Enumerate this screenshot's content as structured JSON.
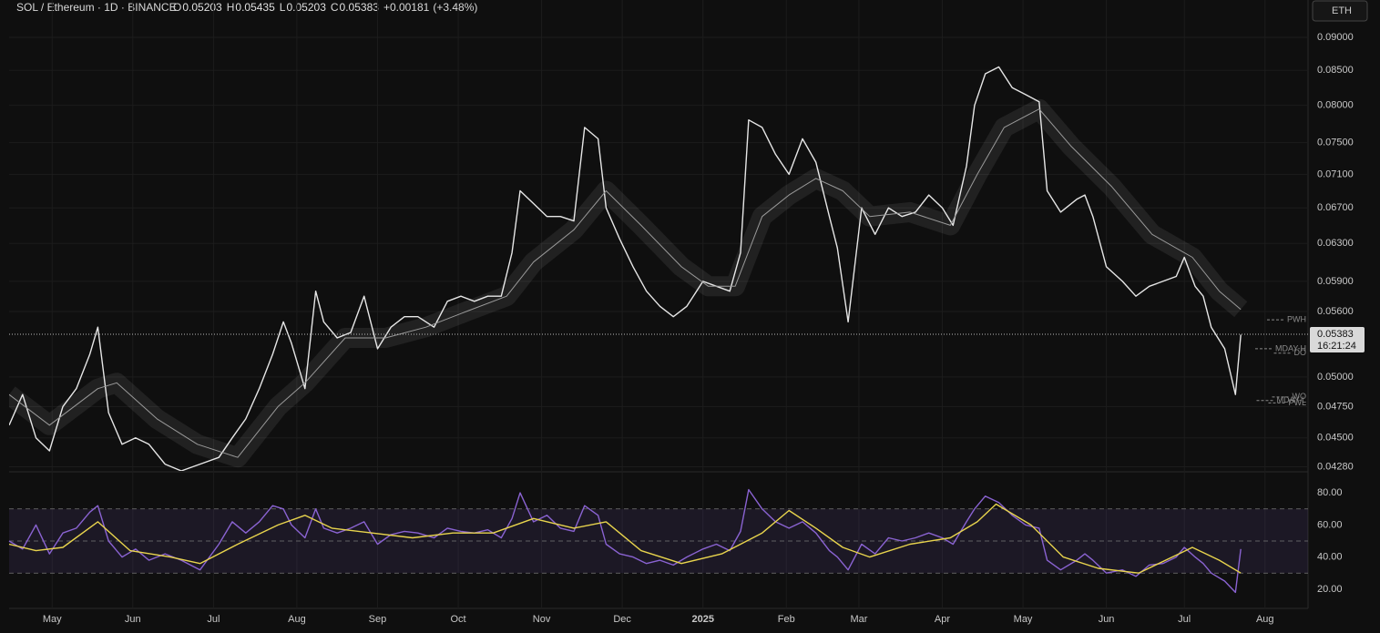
{
  "header": {
    "symbol": "SOL / Ethereum · 1D · BINANCE",
    "ohlc": [
      {
        "label": "O",
        "value": 0.05203
      },
      {
        "label": "H",
        "value": 0.05435
      },
      {
        "label": "L",
        "value": 0.05203
      },
      {
        "label": "C",
        "value": 0.05383
      }
    ],
    "change": {
      "value": 0.00181,
      "label": "+0.00181"
    },
    "change_pct": {
      "value": 3.48,
      "label": "(+3.48%)"
    },
    "currency_button": "ETH"
  },
  "chart_data": [
    {
      "type": "line",
      "log_scale": true,
      "grid": true,
      "xlim": [
        0,
        483
      ],
      "xticks": [
        {
          "value": 16,
          "label": "May"
        },
        {
          "value": 46,
          "label": "Jun"
        },
        {
          "value": 76,
          "label": "Jul"
        },
        {
          "value": 107,
          "label": "Aug"
        },
        {
          "value": 137,
          "label": "Sep"
        },
        {
          "value": 167,
          "label": "Oct"
        },
        {
          "value": 198,
          "label": "Nov"
        },
        {
          "value": 228,
          "label": "Dec"
        },
        {
          "value": 258,
          "label": "2025"
        },
        {
          "value": 289,
          "label": "Feb"
        },
        {
          "value": 316,
          "label": "Mar"
        },
        {
          "value": 347,
          "label": "Apr"
        },
        {
          "value": 377,
          "label": "May"
        },
        {
          "value": 408,
          "label": "Jun"
        },
        {
          "value": 437,
          "label": "Jul"
        },
        {
          "value": 467,
          "label": "Aug"
        }
      ],
      "ylim": [
        0.0425,
        0.096
      ],
      "yticks": [
        {
          "value": 0.09,
          "label": "0.09000"
        },
        {
          "value": 0.085,
          "label": "0.08500"
        },
        {
          "value": 0.08,
          "label": "0.08000"
        },
        {
          "value": 0.075,
          "label": "0.07500"
        },
        {
          "value": 0.071,
          "label": "0.07100"
        },
        {
          "value": 0.067,
          "label": "0.06700"
        },
        {
          "value": 0.063,
          "label": "0.06300"
        },
        {
          "value": 0.059,
          "label": "0.05900"
        },
        {
          "value": 0.056,
          "label": "0.05600"
        },
        {
          "value": 0.05,
          "label": "0.05000"
        },
        {
          "value": 0.0475,
          "label": "0.04750"
        },
        {
          "value": 0.045,
          "label": "0.04500"
        },
        {
          "value": 0.0428,
          "label": "0.04280"
        }
      ],
      "last_price": {
        "value": 0.05383,
        "label": "0.05383",
        "countdown": "16:21:24"
      },
      "levels": [
        {
          "label": "PWH",
          "value": 0.0552
        },
        {
          "label": "MDAY-H",
          "value": 0.0525
        },
        {
          "label": "DO",
          "value": 0.0521
        },
        {
          "label": "WO",
          "value": 0.0483
        },
        {
          "label": "MDAY-L",
          "value": 0.048
        },
        {
          "label": "PWL",
          "value": 0.0478
        }
      ],
      "series": [
        {
          "color": "#e6e6e6",
          "band": false,
          "x": [
            0,
            5,
            10,
            15,
            20,
            25,
            30,
            33,
            37,
            42,
            47,
            52,
            58,
            64,
            71,
            78,
            83,
            88,
            93,
            98,
            102,
            105,
            110,
            114,
            117,
            122,
            127,
            132,
            137,
            142,
            147,
            152,
            158,
            163,
            168,
            173,
            178,
            183,
            187,
            190,
            195,
            200,
            205,
            210,
            214,
            219,
            222,
            227,
            232,
            237,
            242,
            247,
            252,
            258,
            263,
            268,
            272,
            275,
            280,
            285,
            290,
            295,
            300,
            305,
            308,
            312,
            317,
            322,
            327,
            332,
            337,
            342,
            347,
            351,
            356,
            359,
            363,
            368,
            373,
            378,
            383,
            386,
            391,
            397,
            400,
            403,
            408,
            414,
            419,
            424,
            429,
            434,
            437,
            441,
            444,
            447,
            452,
            456,
            458
          ],
          "values": [
            0.046,
            0.0485,
            0.045,
            0.044,
            0.0475,
            0.049,
            0.052,
            0.0545,
            0.047,
            0.0445,
            0.045,
            0.0445,
            0.043,
            0.0425,
            0.043,
            0.0435,
            0.045,
            0.0465,
            0.049,
            0.052,
            0.055,
            0.053,
            0.049,
            0.058,
            0.055,
            0.0535,
            0.054,
            0.0575,
            0.0525,
            0.0545,
            0.0555,
            0.0555,
            0.0545,
            0.057,
            0.0575,
            0.057,
            0.0575,
            0.0575,
            0.062,
            0.069,
            0.0675,
            0.066,
            0.066,
            0.0655,
            0.077,
            0.0755,
            0.067,
            0.0635,
            0.0605,
            0.058,
            0.0565,
            0.0555,
            0.0565,
            0.059,
            0.0585,
            0.058,
            0.062,
            0.078,
            0.077,
            0.0735,
            0.071,
            0.0755,
            0.0725,
            0.066,
            0.0625,
            0.055,
            0.067,
            0.064,
            0.067,
            0.066,
            0.0665,
            0.0685,
            0.067,
            0.065,
            0.072,
            0.08,
            0.0845,
            0.0855,
            0.0825,
            0.0815,
            0.0805,
            0.069,
            0.0665,
            0.068,
            0.0685,
            0.066,
            0.0605,
            0.059,
            0.0575,
            0.0585,
            0.059,
            0.0595,
            0.0615,
            0.0585,
            0.0575,
            0.0545,
            0.0525,
            0.0485,
            0.0538
          ]
        },
        {
          "color": "#9a9a9a",
          "band": true,
          "x": [
            0,
            15,
            33,
            40,
            55,
            70,
            85,
            100,
            110,
            125,
            140,
            155,
            170,
            185,
            195,
            210,
            222,
            235,
            250,
            260,
            270,
            280,
            290,
            300,
            310,
            320,
            335,
            350,
            360,
            370,
            383,
            395,
            410,
            425,
            440,
            450,
            458
          ],
          "values": [
            0.0485,
            0.046,
            0.049,
            0.0495,
            0.0465,
            0.0445,
            0.0435,
            0.0475,
            0.0495,
            0.0535,
            0.0535,
            0.0545,
            0.056,
            0.0575,
            0.061,
            0.0645,
            0.069,
            0.065,
            0.0605,
            0.0585,
            0.0585,
            0.066,
            0.0685,
            0.0705,
            0.069,
            0.066,
            0.0665,
            0.065,
            0.071,
            0.077,
            0.0795,
            0.0745,
            0.0695,
            0.064,
            0.0615,
            0.058,
            0.0562
          ]
        }
      ]
    },
    {
      "type": "line",
      "ylim": [
        8,
        92
      ],
      "yticks": [
        {
          "value": 80,
          "label": "80.00"
        },
        {
          "value": 60,
          "label": "60.00"
        },
        {
          "value": 40,
          "label": "40.00"
        },
        {
          "value": 20,
          "label": "20.00"
        }
      ],
      "levels": [
        70,
        50,
        30
      ],
      "series": [
        {
          "color": "#8a63d2",
          "x": [
            0,
            5,
            10,
            15,
            20,
            25,
            30,
            33,
            37,
            42,
            47,
            52,
            58,
            64,
            71,
            78,
            83,
            88,
            93,
            98,
            102,
            105,
            110,
            114,
            117,
            122,
            127,
            132,
            137,
            142,
            147,
            152,
            158,
            163,
            168,
            173,
            178,
            183,
            187,
            190,
            195,
            200,
            205,
            210,
            214,
            219,
            222,
            227,
            232,
            237,
            242,
            247,
            252,
            258,
            263,
            268,
            272,
            275,
            280,
            285,
            290,
            295,
            300,
            305,
            308,
            312,
            317,
            322,
            327,
            332,
            337,
            342,
            347,
            351,
            356,
            359,
            363,
            368,
            373,
            378,
            383,
            386,
            391,
            397,
            400,
            403,
            408,
            414,
            419,
            424,
            429,
            434,
            437,
            441,
            444,
            447,
            452,
            456,
            458
          ],
          "values": [
            50,
            45,
            60,
            42,
            55,
            58,
            68,
            72,
            50,
            40,
            45,
            38,
            42,
            38,
            32,
            48,
            62,
            55,
            62,
            72,
            70,
            60,
            52,
            70,
            58,
            55,
            58,
            62,
            48,
            54,
            56,
            55,
            52,
            58,
            56,
            55,
            57,
            52,
            64,
            80,
            62,
            66,
            58,
            56,
            72,
            66,
            48,
            42,
            40,
            36,
            38,
            35,
            40,
            45,
            48,
            44,
            56,
            82,
            70,
            62,
            58,
            62,
            55,
            44,
            40,
            32,
            48,
            42,
            52,
            50,
            52,
            55,
            52,
            48,
            62,
            70,
            78,
            74,
            66,
            60,
            58,
            38,
            32,
            38,
            42,
            38,
            30,
            32,
            28,
            35,
            36,
            40,
            46,
            40,
            36,
            30,
            25,
            18,
            45
          ]
        },
        {
          "color": "#e8d44d",
          "x": [
            0,
            10,
            20,
            33,
            45,
            60,
            71,
            85,
            100,
            110,
            120,
            135,
            150,
            165,
            180,
            195,
            210,
            222,
            235,
            250,
            265,
            280,
            290,
            300,
            310,
            320,
            335,
            350,
            360,
            367,
            380,
            392,
            405,
            420,
            435,
            440,
            450,
            458
          ],
          "values": [
            48,
            44,
            46,
            62,
            44,
            40,
            36,
            48,
            60,
            66,
            58,
            55,
            52,
            55,
            55,
            64,
            58,
            62,
            44,
            36,
            42,
            55,
            69,
            58,
            46,
            40,
            48,
            52,
            62,
            73,
            60,
            40,
            33,
            30,
            42,
            46,
            38,
            30
          ]
        }
      ]
    }
  ]
}
